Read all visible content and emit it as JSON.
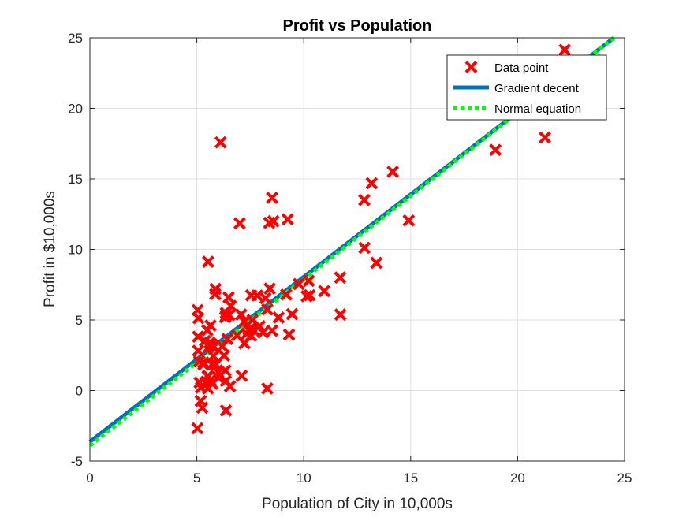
{
  "chart_data": {
    "type": "scatter",
    "title": "Profit vs Population",
    "xlabel": "Population of City in 10,000s",
    "ylabel": "Profit in $10,000s",
    "xlim": [
      0,
      25
    ],
    "ylim": [
      -5,
      25
    ],
    "xticks": [
      0,
      5,
      10,
      15,
      20,
      25
    ],
    "yticks": [
      -5,
      0,
      5,
      10,
      15,
      20,
      25
    ],
    "grid": true,
    "legend_position": "top-right",
    "colors": {
      "data_point": "#ff0000",
      "gradient_descent": "#0072bd",
      "normal_equation": "#00ff00"
    },
    "series": [
      {
        "name": "Data point",
        "marker": "x",
        "points": [
          [
            6.1101,
            17.592
          ],
          [
            5.5277,
            9.1302
          ],
          [
            8.5186,
            13.662
          ],
          [
            7.0032,
            11.854
          ],
          [
            5.8598,
            6.8233
          ],
          [
            8.3829,
            11.886
          ],
          [
            7.4764,
            4.3483
          ],
          [
            8.5781,
            12.0
          ],
          [
            6.4862,
            6.5987
          ],
          [
            5.0546,
            3.8166
          ],
          [
            5.7107,
            3.2522
          ],
          [
            14.164,
            15.505
          ],
          [
            5.734,
            3.1551
          ],
          [
            8.4084,
            7.2258
          ],
          [
            5.6407,
            0.71618
          ],
          [
            5.3794,
            3.5129
          ],
          [
            6.3654,
            5.3048
          ],
          [
            5.1301,
            0.56077
          ],
          [
            6.4296,
            3.6518
          ],
          [
            7.0708,
            5.3893
          ],
          [
            6.1891,
            3.1386
          ],
          [
            20.27,
            21.767
          ],
          [
            5.4901,
            4.263
          ],
          [
            6.3261,
            5.1875
          ],
          [
            5.5649,
            3.0825
          ],
          [
            18.945,
            22.638
          ],
          [
            12.828,
            13.501
          ],
          [
            10.957,
            7.0467
          ],
          [
            13.176,
            14.692
          ],
          [
            22.203,
            24.147
          ],
          [
            5.2524,
            -1.22
          ],
          [
            6.5894,
            5.9966
          ],
          [
            9.2482,
            12.134
          ],
          [
            5.8918,
            1.8495
          ],
          [
            8.2111,
            6.5426
          ],
          [
            7.9334,
            4.5623
          ],
          [
            8.0959,
            4.1164
          ],
          [
            5.6063,
            3.3928
          ],
          [
            12.836,
            10.117
          ],
          [
            6.3534,
            5.4974
          ],
          [
            5.4069,
            0.55657
          ],
          [
            6.8825,
            3.9115
          ],
          [
            11.708,
            5.3854
          ],
          [
            5.7737,
            2.4406
          ],
          [
            7.8247,
            6.7318
          ],
          [
            7.0931,
            1.0463
          ],
          [
            5.0702,
            5.1337
          ],
          [
            5.8014,
            1.844
          ],
          [
            11.7,
            8.0043
          ],
          [
            5.5416,
            1.0179
          ],
          [
            7.5402,
            6.7504
          ],
          [
            5.3077,
            1.8396
          ],
          [
            7.4239,
            4.2885
          ],
          [
            7.6031,
            4.9981
          ],
          [
            6.3328,
            1.4233
          ],
          [
            6.3589,
            -1.4211
          ],
          [
            6.2742,
            2.4756
          ],
          [
            5.6397,
            4.6042
          ],
          [
            9.3102,
            3.9624
          ],
          [
            9.4536,
            5.4141
          ],
          [
            8.8254,
            5.1694
          ],
          [
            5.1793,
            -0.74279
          ],
          [
            21.279,
            17.929
          ],
          [
            14.908,
            12.054
          ],
          [
            18.959,
            17.054
          ],
          [
            7.2182,
            4.8852
          ],
          [
            8.2951,
            5.7442
          ],
          [
            10.236,
            7.7754
          ],
          [
            5.4994,
            1.0173
          ],
          [
            20.341,
            20.992
          ],
          [
            10.136,
            6.6799
          ],
          [
            7.3345,
            4.0259
          ],
          [
            6.0062,
            1.2784
          ],
          [
            7.2259,
            3.3411
          ],
          [
            5.0269,
            -2.6807
          ],
          [
            6.5479,
            0.29678
          ],
          [
            7.5386,
            3.8845
          ],
          [
            5.0365,
            5.7014
          ],
          [
            10.274,
            6.7526
          ],
          [
            5.1077,
            2.0576
          ],
          [
            5.7292,
            0.47953
          ],
          [
            5.1884,
            0.20421
          ],
          [
            6.3557,
            0.67861
          ],
          [
            9.7687,
            7.5435
          ],
          [
            6.5159,
            5.3436
          ],
          [
            8.5172,
            4.2415
          ],
          [
            9.1802,
            6.7981
          ],
          [
            6.002,
            0.92695
          ],
          [
            5.5204,
            0.152
          ],
          [
            5.0594,
            2.8214
          ],
          [
            5.7077,
            1.8451
          ],
          [
            7.6366,
            4.2959
          ],
          [
            5.8707,
            7.2029
          ],
          [
            5.3054,
            1.9869
          ],
          [
            8.2934,
            0.14454
          ],
          [
            13.394,
            9.0551
          ],
          [
            5.4369,
            0.61705
          ]
        ]
      },
      {
        "name": "Gradient decent",
        "marker": "line",
        "line": [
          [
            0,
            -3.63
          ],
          [
            24.5,
            25.0
          ]
        ]
      },
      {
        "name": "Normal equation",
        "marker": "dotted-line",
        "line": [
          [
            0,
            -3.9
          ],
          [
            24.5,
            25.0
          ]
        ]
      }
    ]
  }
}
